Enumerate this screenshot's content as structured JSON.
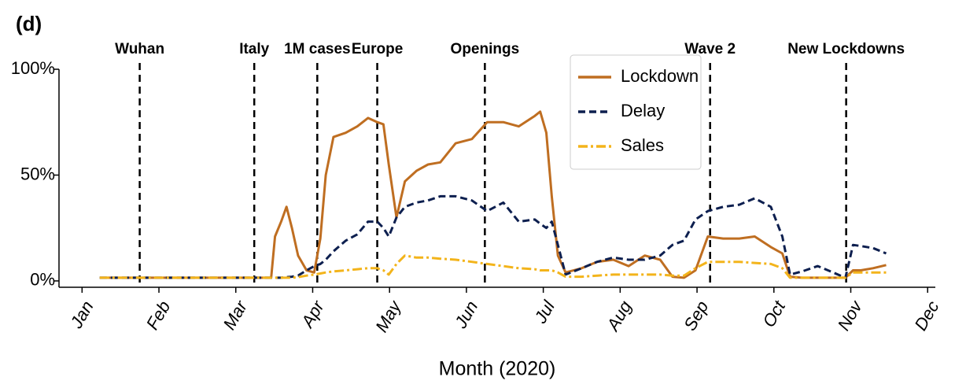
{
  "chart_data": {
    "type": "line",
    "panel_label": "(d)",
    "xlabel": "Month (2020)",
    "xlim": [
      -0.3,
      11.1
    ],
    "xticks": [
      {
        "value": 0,
        "label": "Jan"
      },
      {
        "value": 1,
        "label": "Feb"
      },
      {
        "value": 2,
        "label": "Mar"
      },
      {
        "value": 3,
        "label": "Apr"
      },
      {
        "value": 4,
        "label": "May"
      },
      {
        "value": 5,
        "label": "Jun"
      },
      {
        "value": 6,
        "label": "Jul"
      },
      {
        "value": 7,
        "label": "Aug"
      },
      {
        "value": 8,
        "label": "Sep"
      },
      {
        "value": 9,
        "label": "Oct"
      },
      {
        "value": 10,
        "label": "Nov"
      },
      {
        "value": 11,
        "label": "Dec"
      }
    ],
    "ylim": [
      -3,
      100
    ],
    "yticks": [
      {
        "value": 0,
        "label": "0%"
      },
      {
        "value": 50,
        "label": "50%"
      },
      {
        "value": 100,
        "label": "100%"
      }
    ],
    "grid": false,
    "legend": "upper right",
    "events": [
      {
        "x": 0.75,
        "label": "Wuhan"
      },
      {
        "x": 2.24,
        "label": "Italy"
      },
      {
        "x": 3.06,
        "label": "1M cases"
      },
      {
        "x": 3.84,
        "label": "Europe"
      },
      {
        "x": 5.24,
        "label": "Openings"
      },
      {
        "x": 8.17,
        "label": "Wave 2"
      },
      {
        "x": 9.94,
        "label": "New Lockdowns"
      }
    ],
    "x": [
      0.23,
      0.97,
      2.0,
      2.41,
      2.46,
      2.51,
      2.59,
      2.66,
      2.73,
      2.81,
      2.92,
      3.02,
      3.1,
      3.17,
      3.27,
      3.43,
      3.58,
      3.72,
      3.84,
      3.92,
      3.99,
      4.09,
      4.2,
      4.35,
      4.5,
      4.66,
      4.86,
      5.07,
      5.27,
      5.48,
      5.68,
      5.89,
      5.96,
      6.04,
      6.11,
      6.19,
      6.29,
      6.5,
      6.7,
      6.91,
      7.11,
      7.32,
      7.52,
      7.68,
      7.83,
      7.98,
      8.14,
      8.34,
      8.55,
      8.75,
      8.96,
      9.11,
      9.21,
      9.37,
      9.57,
      9.77,
      9.93,
      10.03,
      10.13,
      10.29,
      10.46
    ],
    "series": [
      {
        "name": "Lockdown",
        "color": "#bf6e21",
        "dash": "solid",
        "values": [
          1.5,
          1.5,
          1.5,
          1.5,
          1.5,
          21,
          28,
          35,
          25,
          12,
          5,
          4,
          20,
          50,
          68,
          70,
          73,
          77,
          75,
          74,
          55,
          30,
          47,
          52,
          55,
          56,
          65,
          67,
          75,
          75,
          73,
          78,
          80,
          70,
          40,
          12,
          4,
          6,
          9,
          10,
          7,
          12,
          10,
          2,
          1.5,
          5,
          21,
          20,
          20,
          21,
          16,
          13,
          2,
          1.5,
          1.5,
          1.5,
          1.5,
          5,
          5,
          6,
          7.5
        ]
      },
      {
        "name": "Delay",
        "color": "#0d1f4f",
        "dash": "dashed",
        "values": [
          1.5,
          1.5,
          1.5,
          1.5,
          1.5,
          1.5,
          1.5,
          1.8,
          2,
          2.5,
          5,
          7,
          8,
          10,
          14,
          19,
          22,
          28,
          28,
          25,
          21,
          30,
          35,
          37,
          38,
          40,
          40,
          38,
          33,
          37,
          28,
          29,
          27,
          25,
          28,
          17,
          3,
          6,
          9,
          11,
          10,
          10,
          12,
          17,
          19,
          29,
          33,
          35,
          36,
          39,
          35,
          21,
          3,
          4.5,
          7,
          4,
          1.5,
          17,
          16.5,
          15.5,
          13
        ]
      },
      {
        "name": "Sales",
        "color": "#f3b41b",
        "dash": "dashdot",
        "values": [
          1.5,
          1.5,
          1.5,
          1.5,
          1.5,
          1.5,
          1.5,
          1.5,
          1.5,
          1.8,
          2.5,
          3,
          3.5,
          4,
          4.5,
          5,
          5.5,
          6,
          6,
          5,
          3,
          8,
          12,
          11,
          11,
          10.5,
          10,
          9,
          8,
          7,
          6,
          5.5,
          5,
          5,
          5,
          4,
          2,
          2,
          2.5,
          3,
          3,
          3,
          3,
          2.5,
          2.5,
          6,
          9,
          9,
          9,
          8.5,
          8,
          6,
          1.5,
          1.5,
          1.5,
          1.5,
          1.5,
          4,
          4,
          4,
          4
        ]
      }
    ]
  }
}
